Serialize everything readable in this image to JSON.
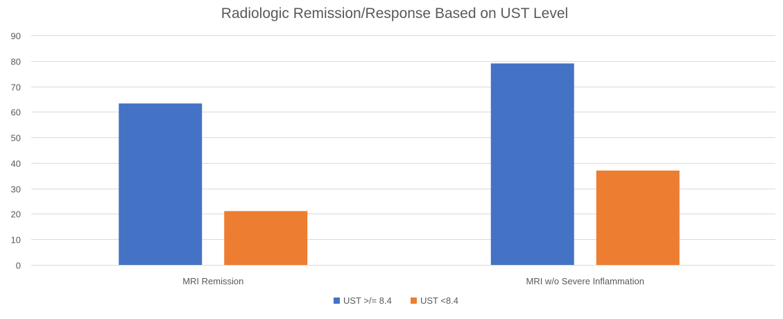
{
  "chart_data": {
    "type": "bar",
    "title": "Radiologic Remission/Response Based on UST Level",
    "xlabel": "",
    "ylabel": "",
    "categories": [
      "MRI Remission",
      "MRI w/o Severe Inflammation"
    ],
    "series": [
      {
        "name": "UST >/= 8.4",
        "values": [
          63.3,
          79
        ],
        "color": "#4472C4"
      },
      {
        "name": "UST <8.4",
        "values": [
          21.1,
          37
        ],
        "color": "#ED7D31"
      }
    ],
    "ylim": [
      0,
      90
    ],
    "yticks": [
      0,
      10,
      20,
      30,
      40,
      50,
      60,
      70,
      80,
      90
    ],
    "grid": true,
    "legend_position": "bottom"
  }
}
